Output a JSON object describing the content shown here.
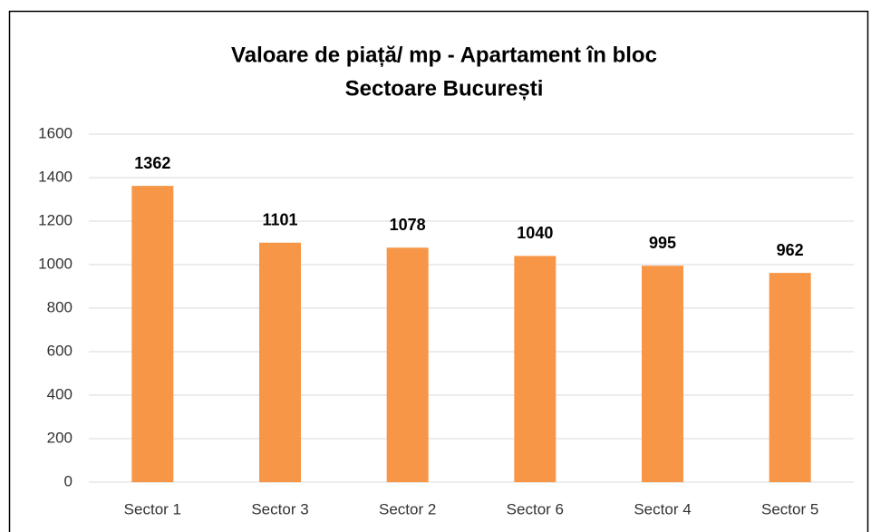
{
  "chart_data": {
    "type": "bar",
    "title": "Valoare de piață/ mp - Apartament în bloc",
    "subtitle": "Sectoare București",
    "categories": [
      "Sector 1",
      "Sector 3",
      "Sector 2",
      "Sector 6",
      "Sector 4",
      "Sector 5"
    ],
    "values": [
      1362,
      1101,
      1078,
      1040,
      995,
      962
    ],
    "color": "#f79646",
    "ylim": [
      0,
      1600
    ],
    "yticks": [
      0,
      200,
      400,
      600,
      800,
      1000,
      1200,
      1400,
      1600
    ],
    "grid": true
  }
}
